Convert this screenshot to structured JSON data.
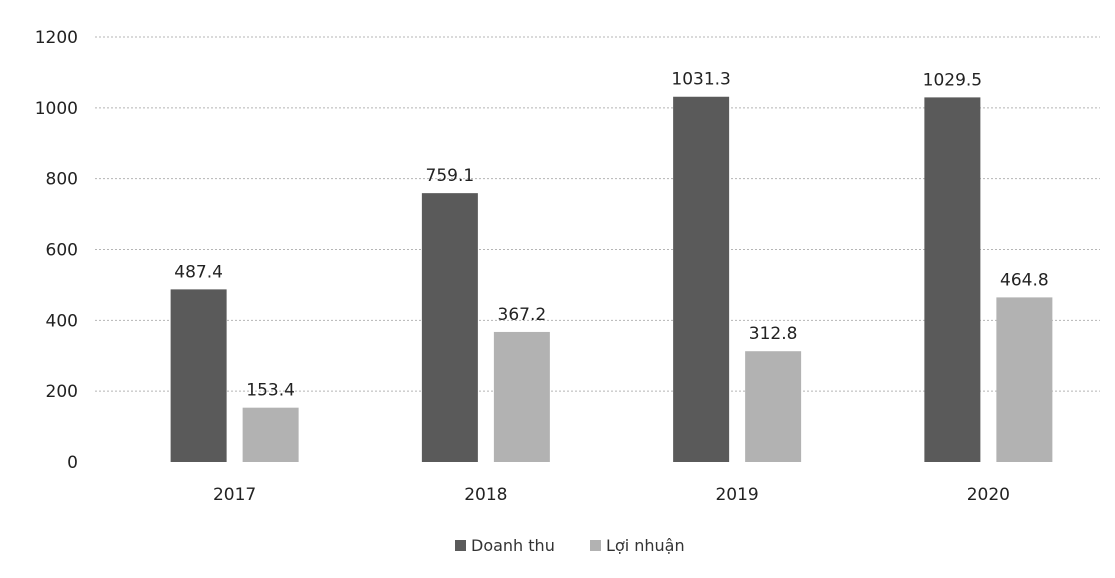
{
  "chart_data": {
    "type": "bar",
    "categories": [
      "2017",
      "2018",
      "2019",
      "2020"
    ],
    "series": [
      {
        "name": "Doanh thu",
        "values": [
          487.4,
          759.1,
          1031.3,
          1029.5
        ],
        "color": "#5a5a5a"
      },
      {
        "name": "Lợi nhuận",
        "values": [
          153.4,
          367.2,
          312.8,
          464.8
        ],
        "color": "#b2b2b2"
      }
    ],
    "data_labels": [
      [
        "487.4",
        "759.1",
        "1031.3",
        "1029.5"
      ],
      [
        "153.4",
        "367.2",
        "312.8",
        "464.8"
      ]
    ],
    "yticks": [
      "0",
      "200",
      "400",
      "600",
      "800",
      "1000",
      "1200"
    ],
    "ylim": [
      0,
      1200
    ],
    "grid": true,
    "legend_position": "bottom"
  }
}
